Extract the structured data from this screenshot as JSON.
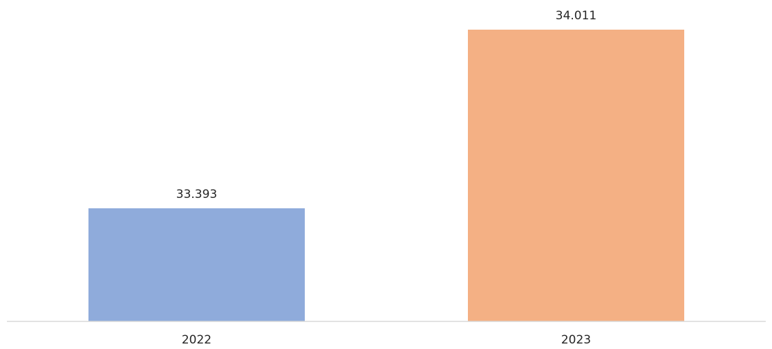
{
  "chart_data": {
    "type": "bar",
    "categories": [
      "2022",
      "2023"
    ],
    "values": [
      33.393,
      34.011
    ],
    "value_labels": [
      "33.393",
      "34.011"
    ],
    "colors": [
      "#8FABDB",
      "#F4B084"
    ],
    "baseline_color": "#D9D9D9",
    "text_color": "#262626",
    "grid": false,
    "legend": "none"
  }
}
